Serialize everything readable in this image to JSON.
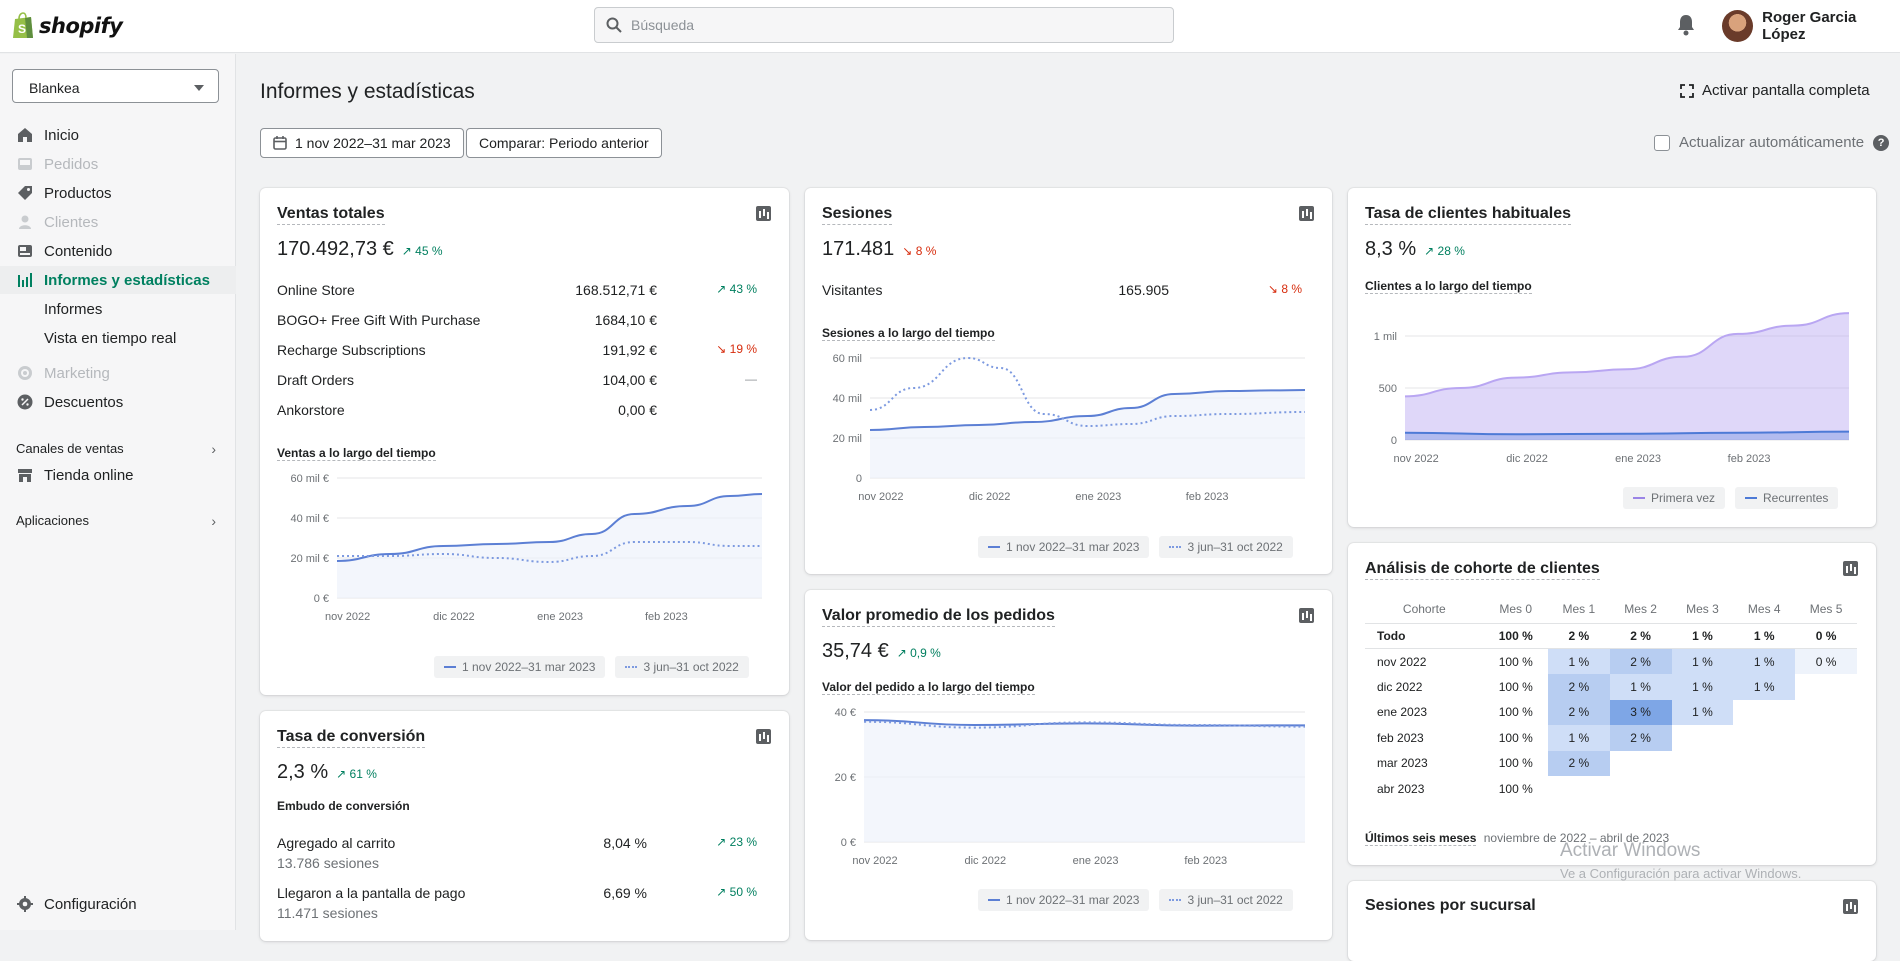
{
  "brand": {
    "name": "shopify"
  },
  "search": {
    "placeholder": "Búsqueda"
  },
  "user": {
    "name": "Roger Garcia López"
  },
  "store_select": {
    "value": "Blankea"
  },
  "nav": {
    "inicio": "Inicio",
    "pedidos": "Pedidos",
    "productos": "Productos",
    "clientes": "Clientes",
    "contenido": "Contenido",
    "informes_estadisticas": "Informes y estadísticas",
    "informes": "Informes",
    "vista_real": "Vista en tiempo real",
    "marketing": "Marketing",
    "descuentos": "Descuentos",
    "canales": "Canales de ventas",
    "tienda_online": "Tienda online",
    "aplicaciones": "Aplicaciones",
    "configuracion": "Configuración"
  },
  "page": {
    "title": "Informes y estadísticas",
    "fullscreen": "Activar pantalla completa",
    "date_range": "1 nov 2022–31 mar 2023",
    "compare": "Comparar: Periodo anterior",
    "auto_update": "Actualizar automáticamente"
  },
  "ventas": {
    "title": "Ventas totales",
    "value": "170.492,73 €",
    "trend": "45 %",
    "rows": [
      {
        "label": "Online Store",
        "value": "168.512,71 €",
        "trend": "43 %"
      },
      {
        "label": "BOGO+ Free Gift With Purchase",
        "value": "1684,10 €",
        "trend": ""
      },
      {
        "label": "Recharge Subscriptions",
        "value": "191,92 €",
        "trend": "19 %"
      },
      {
        "label": "Draft Orders",
        "value": "104,00 €",
        "trend": "—"
      },
      {
        "label": "Ankorstore",
        "value": "0,00 €",
        "trend": ""
      }
    ],
    "subtitle": "Ventas a lo largo del tiempo",
    "legend_a": "1 nov 2022–31 mar 2023",
    "legend_b": "3 jun–31 oct 2022"
  },
  "sesiones": {
    "title": "Sesiones",
    "value": "171.481",
    "trend": "8 %",
    "visitantes_label": "Visitantes",
    "visitantes_value": "165.905",
    "visitantes_trend": "8 %",
    "subtitle": "Sesiones a lo largo del tiempo",
    "legend_a": "1 nov 2022–31 mar 2023",
    "legend_b": "3 jun–31 oct 2022"
  },
  "habituales": {
    "title": "Tasa de clientes habituales",
    "value": "8,3 %",
    "trend": "28 %",
    "subtitle": "Clientes a lo largo del tiempo",
    "legend_a": "Primera vez",
    "legend_b": "Recurrentes"
  },
  "conversion": {
    "title": "Tasa de conversión",
    "value": "2,3 %",
    "trend": "61 %",
    "subtitle": "Embudo de conversión",
    "rows": [
      {
        "label": "Agregado al carrito",
        "sub": "13.786 sesiones",
        "value": "8,04 %",
        "trend": "23 %"
      },
      {
        "label": "Llegaron a la pantalla de pago",
        "sub": "11.471 sesiones",
        "value": "6,69 %",
        "trend": "50 %"
      }
    ]
  },
  "valor": {
    "title": "Valor promedio de los pedidos",
    "value": "35,74 €",
    "trend": "0,9 %",
    "subtitle": "Valor del pedido a lo largo del tiempo",
    "legend_a": "1 nov 2022–31 mar 2023",
    "legend_b": "3 jun–31 oct 2022"
  },
  "cohorte": {
    "title": "Análisis de cohorte de clientes",
    "headers": [
      "Cohorte",
      "Mes 0",
      "Mes 1",
      "Mes 2",
      "Mes 3",
      "Mes 4",
      "Mes 5"
    ],
    "rows": [
      [
        "Todo",
        "100 %",
        "2 %",
        "2 %",
        "1 %",
        "1 %",
        "0 %"
      ],
      [
        "nov 2022",
        "100 %",
        "1 %",
        "2 %",
        "1 %",
        "1 %",
        "0 %"
      ],
      [
        "dic 2022",
        "100 %",
        "2 %",
        "1 %",
        "1 %",
        "1 %",
        ""
      ],
      [
        "ene 2023",
        "100 %",
        "2 %",
        "3 %",
        "1 %",
        "",
        ""
      ],
      [
        "feb 2023",
        "100 %",
        "1 %",
        "2 %",
        "",
        "",
        ""
      ],
      [
        "mar 2023",
        "100 %",
        "2 %",
        "",
        "",
        "",
        ""
      ],
      [
        "abr 2023",
        "100 %",
        "",
        "",
        "",
        "",
        ""
      ]
    ],
    "footer_label": "Últimos seis meses",
    "footer_value": "noviembre de 2022 – abril de 2023"
  },
  "sucursal": {
    "title": "Sesiones por sucursal"
  },
  "watermark": {
    "line1": "Activar Windows",
    "line2": "Ve a Configuración para activar Windows."
  },
  "chart_data": [
    {
      "type": "line",
      "title": "Ventas a lo largo del tiempo",
      "x": [
        "nov 2022",
        "dic 2022",
        "ene 2023",
        "feb 2023"
      ],
      "yticks": [
        "0 €",
        "20 mil €",
        "40 mil €",
        "60 mil €"
      ],
      "ylim": [
        0,
        60000
      ],
      "series": [
        {
          "name": "1 nov 2022–31 mar 2023",
          "points": [
            [
              0,
              18500
            ],
            [
              0.5,
              22000
            ],
            [
              1,
              26000
            ],
            [
              1.5,
              27000
            ],
            [
              2,
              28000
            ],
            [
              2.4,
              32000
            ],
            [
              2.8,
              42000
            ],
            [
              3.3,
              46000
            ],
            [
              3.7,
              51000
            ],
            [
              4,
              52000
            ]
          ]
        },
        {
          "name": "3 jun–31 oct 2022",
          "points": [
            [
              0,
              21000
            ],
            [
              0.5,
              21000
            ],
            [
              1,
              22000
            ],
            [
              1.5,
              20000
            ],
            [
              2,
              18000
            ],
            [
              2.4,
              21000
            ],
            [
              2.8,
              28000
            ],
            [
              3.3,
              28000
            ],
            [
              3.7,
              26000
            ],
            [
              4,
              26000
            ]
          ]
        }
      ]
    },
    {
      "type": "line",
      "title": "Sesiones a lo largo del tiempo",
      "x": [
        "nov 2022",
        "dic 2022",
        "ene 2023",
        "feb 2023"
      ],
      "yticks": [
        "0",
        "20 mil",
        "40 mil",
        "60 mil"
      ],
      "ylim": [
        0,
        60000
      ],
      "series": [
        {
          "name": "1 nov 2022–31 mar 2023",
          "points": [
            [
              0,
              24000
            ],
            [
              0.5,
              25500
            ],
            [
              1,
              26500
            ],
            [
              1.5,
              28000
            ],
            [
              2,
              31000
            ],
            [
              2.4,
              35000
            ],
            [
              2.8,
              42000
            ],
            [
              3.3,
              43500
            ],
            [
              3.7,
              43800
            ],
            [
              4,
              44000
            ]
          ]
        },
        {
          "name": "3 jun–31 oct 2022",
          "points": [
            [
              0,
              34000
            ],
            [
              0.4,
              45000
            ],
            [
              0.9,
              60000
            ],
            [
              1.2,
              55000
            ],
            [
              1.6,
              32000
            ],
            [
              2,
              26000
            ],
            [
              2.4,
              27000
            ],
            [
              2.8,
              31000
            ],
            [
              3.3,
              32000
            ],
            [
              4,
              33000
            ]
          ]
        }
      ]
    },
    {
      "type": "area",
      "title": "Clientes a lo largo del tiempo",
      "x": [
        "nov 2022",
        "dic 2022",
        "ene 2023",
        "feb 2023"
      ],
      "yticks": [
        "0",
        "500",
        "1 mil"
      ],
      "ylim": [
        0,
        1250
      ],
      "series": [
        {
          "name": "Primera vez",
          "points": [
            [
              0,
              420
            ],
            [
              0.5,
              500
            ],
            [
              1,
              600
            ],
            [
              1.5,
              650
            ],
            [
              2,
              680
            ],
            [
              2.5,
              800
            ],
            [
              3,
              1020
            ],
            [
              3.5,
              1100
            ],
            [
              4,
              1220
            ]
          ]
        },
        {
          "name": "Recurrentes",
          "points": [
            [
              0,
              70
            ],
            [
              1,
              55
            ],
            [
              2,
              60
            ],
            [
              3,
              70
            ],
            [
              4,
              80
            ]
          ]
        }
      ]
    },
    {
      "type": "line",
      "title": "Valor del pedido a lo largo del tiempo",
      "x": [
        "nov 2022",
        "dic 2022",
        "ene 2023",
        "feb 2023"
      ],
      "yticks": [
        "0 €",
        "20 €",
        "40 €"
      ],
      "ylim": [
        0,
        40
      ],
      "series": [
        {
          "name": "1 nov 2022–31 mar 2023",
          "points": [
            [
              0,
              37.5
            ],
            [
              1,
              36
            ],
            [
              2,
              36.5
            ],
            [
              3,
              35.8
            ],
            [
              4,
              35.9
            ]
          ]
        },
        {
          "name": "3 jun–31 oct 2022",
          "points": [
            [
              0,
              37
            ],
            [
              1,
              35.2
            ],
            [
              2,
              36.8
            ],
            [
              3,
              36
            ],
            [
              4,
              35.5
            ]
          ]
        }
      ]
    }
  ]
}
